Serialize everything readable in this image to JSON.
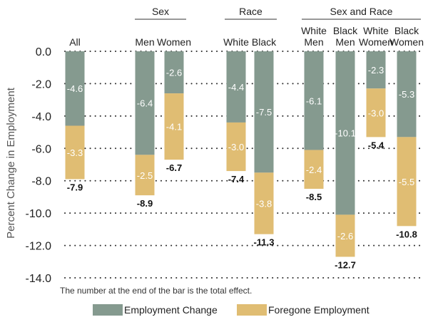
{
  "chart_data": {
    "type": "bar",
    "stacked": true,
    "ylabel": "Percent Change in Employment",
    "ylim": [
      -14.0,
      0.0
    ],
    "yticks": [
      "0.0",
      "-2.0",
      "-4.0",
      "-6.0",
      "-8.0",
      "-10.0",
      "-12.0",
      "-14.0"
    ],
    "grid": "dotted horizontal",
    "legend_position": "bottom",
    "note": "The number at the end of the bar is the total effect.",
    "groups": [
      {
        "label": "",
        "categories": [
          "All"
        ]
      },
      {
        "label": "Sex",
        "categories": [
          "Men",
          "Women"
        ]
      },
      {
        "label": "Race",
        "categories": [
          "White",
          "Black"
        ]
      },
      {
        "label": "Sex and Race",
        "categories": [
          "White Men",
          "Black Men",
          "White Women",
          "Black Women"
        ]
      }
    ],
    "categories": [
      "All",
      "Men",
      "Women",
      "White",
      "Black",
      "White Men",
      "Black Men",
      "White Women",
      "Black Women"
    ],
    "category_lines": [
      [
        "All"
      ],
      [
        "Men"
      ],
      [
        "Women"
      ],
      [
        "White"
      ],
      [
        "Black"
      ],
      [
        "White",
        "Men"
      ],
      [
        "Black",
        "Men"
      ],
      [
        "White",
        "Women"
      ],
      [
        "Black",
        "Women"
      ]
    ],
    "series": [
      {
        "name": "Employment Change",
        "color": "#859a8f",
        "values": [
          -4.6,
          -6.4,
          -2.6,
          -4.4,
          -7.5,
          -6.1,
          -10.1,
          -2.3,
          -5.3
        ]
      },
      {
        "name": "Foregone Employment",
        "color": "#e0bd73",
        "values": [
          -3.3,
          -2.5,
          -4.1,
          -3.0,
          -3.8,
          -2.4,
          -2.6,
          -3.0,
          -5.5
        ]
      }
    ],
    "series_labels": [
      [
        "-4.6",
        "-6.4",
        "-2.6",
        "-4.4",
        "-7.5",
        "-6.1",
        "-10.1",
        "-2.3",
        "-5.3"
      ],
      [
        "-3.3",
        "-2.5",
        "-4.1",
        "-3.0",
        "-3.8",
        "-2.4",
        "-2.6",
        "-3.0",
        "-5.5"
      ]
    ],
    "totals": [
      -7.9,
      -8.9,
      -6.7,
      -7.4,
      -11.3,
      -8.5,
      -12.7,
      -5.4,
      -10.8
    ],
    "total_labels": [
      "-7.9",
      "-8.9",
      "-6.7",
      "-7.4",
      "-11.3",
      "-8.5",
      "-12.7",
      "-5.4",
      "-10.8"
    ]
  }
}
